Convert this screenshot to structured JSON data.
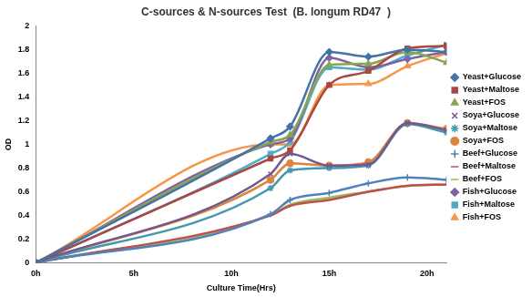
{
  "chart_data": {
    "type": "line",
    "title": "C-sources & N-sources Test  (B. longum RD47  )",
    "x_label": "Culture Time(Hrs)",
    "y_label": "OD",
    "x": [
      0,
      12,
      13,
      15,
      17,
      19,
      21
    ],
    "xlim": [
      0,
      21
    ],
    "xticks": [
      {
        "value": 0,
        "label": "0h"
      },
      {
        "value": 5,
        "label": "5h"
      },
      {
        "value": 10,
        "label": "10h"
      },
      {
        "value": 15,
        "label": "15h"
      },
      {
        "value": 20,
        "label": "20h"
      }
    ],
    "ylim": [
      0,
      2
    ],
    "yticks": [
      0,
      0.2,
      0.4,
      0.6,
      0.8,
      1,
      1.2,
      1.4,
      1.6,
      1.8,
      2
    ],
    "grid": false,
    "legend": "right",
    "series": [
      {
        "name": "Yeast+Glucose",
        "color": "#4572a7",
        "marker": "diamond",
        "values": [
          0,
          1.05,
          1.15,
          1.78,
          1.74,
          1.8,
          1.78
        ]
      },
      {
        "name": "Yeast+Maltose",
        "color": "#aa4643",
        "marker": "square",
        "values": [
          0,
          0.88,
          0.95,
          1.5,
          1.62,
          1.81,
          1.83
        ]
      },
      {
        "name": "Yeast+FOS",
        "color": "#89a54e",
        "marker": "triangle",
        "values": [
          0,
          1.02,
          1.08,
          1.67,
          1.68,
          1.78,
          1.69
        ]
      },
      {
        "name": "Soya+Glucose",
        "color": "#71588f",
        "marker": "x",
        "values": [
          0,
          0.75,
          0.92,
          0.82,
          0.83,
          1.18,
          1.12
        ]
      },
      {
        "name": "Soya+Maltose",
        "color": "#4198af",
        "marker": "star",
        "values": [
          0,
          0.63,
          0.78,
          0.8,
          0.82,
          1.17,
          1.1
        ]
      },
      {
        "name": "Soya+FOS",
        "color": "#db843d",
        "marker": "circle",
        "values": [
          0,
          0.7,
          0.84,
          0.82,
          0.85,
          1.18,
          1.13
        ]
      },
      {
        "name": "Beef+Glucose",
        "color": "#4f81bd",
        "marker": "plus",
        "values": [
          0,
          0.41,
          0.53,
          0.59,
          0.67,
          0.72,
          0.7
        ]
      },
      {
        "name": "Beef+Maltose",
        "color": "#c0504d",
        "marker": "none",
        "values": [
          0,
          0.4,
          0.48,
          0.53,
          0.6,
          0.65,
          0.66
        ]
      },
      {
        "name": "Beef+FOS",
        "color": "#9bbb59",
        "marker": "none",
        "values": [
          0,
          0.4,
          0.49,
          0.55,
          0.6,
          0.65,
          0.66
        ]
      },
      {
        "name": "Fish+Glucose",
        "color": "#8064a2",
        "marker": "diamond",
        "values": [
          0,
          1.0,
          1.05,
          1.73,
          1.65,
          1.72,
          1.78
        ]
      },
      {
        "name": "Fish+Maltose",
        "color": "#4bacc6",
        "marker": "square",
        "values": [
          0,
          0.92,
          1.02,
          1.65,
          1.63,
          1.75,
          1.84
        ]
      },
      {
        "name": "Fish+FOS",
        "color": "#f79646",
        "marker": "triangle",
        "values": [
          0,
          1.0,
          1.0,
          1.5,
          1.51,
          1.66,
          1.77
        ]
      }
    ]
  }
}
